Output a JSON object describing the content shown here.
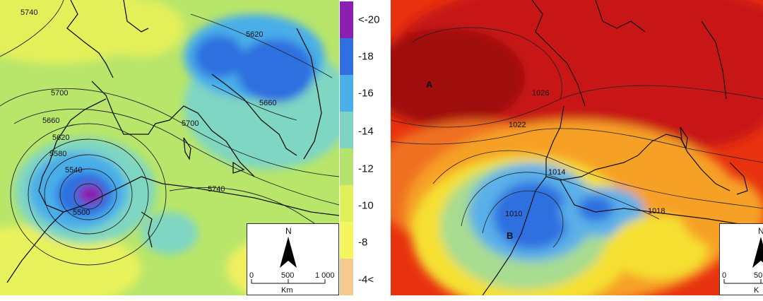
{
  "left_map": {
    "contour_labels": [
      "5740",
      "5620",
      "5700",
      "5660",
      "5660",
      "5620",
      "5580",
      "5540",
      "5500",
      "5700",
      "5740"
    ]
  },
  "legend": {
    "entries": [
      {
        "label": "<-20",
        "color": "#8b1fb0"
      },
      {
        "label": "-18",
        "color": "#2f6fe0"
      },
      {
        "label": "-16",
        "color": "#4aaee8"
      },
      {
        "label": "-14",
        "color": "#7fd4c4"
      },
      {
        "label": "-12",
        "color": "#b6e36e"
      },
      {
        "label": "-10",
        "color": "#dff05a"
      },
      {
        "label": "-8",
        "color": "#f5f560"
      },
      {
        "label": "-4<",
        "color": "#f6c990"
      }
    ]
  },
  "right_map": {
    "high_label": "A",
    "low_label": "B",
    "isobar_labels": [
      "1026",
      "1022",
      "1014",
      "1010",
      "1018"
    ]
  },
  "scale_bar": {
    "north": "N",
    "ticks": [
      "0",
      "500",
      "1 000"
    ],
    "unit": "Km",
    "right_ticks": [
      "0",
      "50"
    ],
    "right_unit": "K"
  }
}
